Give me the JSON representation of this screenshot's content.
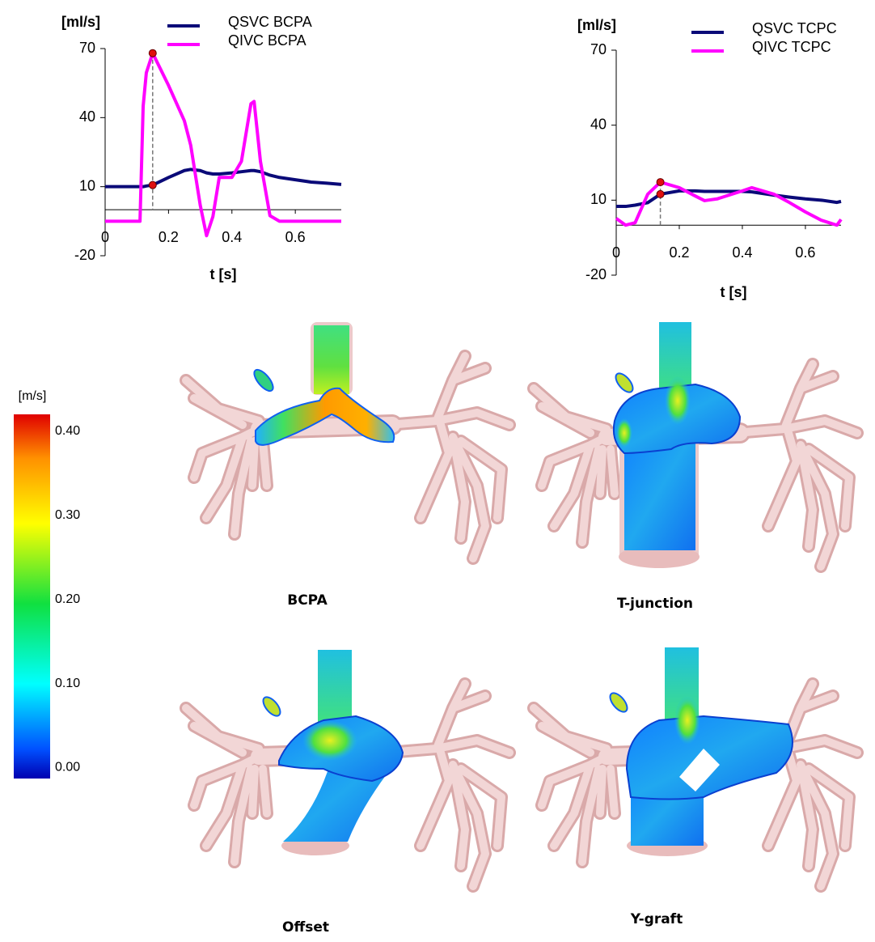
{
  "chart_data": [
    {
      "type": "line",
      "y_label": "[ml/s]",
      "x_label": "t [s]",
      "x": [
        0,
        0.05,
        0.1,
        0.11,
        0.12,
        0.13,
        0.15,
        0.2,
        0.25,
        0.27,
        0.3,
        0.32,
        0.34,
        0.36,
        0.4,
        0.43,
        0.46,
        0.47,
        0.49,
        0.52,
        0.55,
        0.6,
        0.65,
        0.7,
        0.745
      ],
      "series": [
        {
          "name": "QSVC BCPA",
          "color": "#0a0a78",
          "values": [
            10,
            10,
            10,
            10,
            10,
            10.3,
            10.7,
            14,
            17,
            17.5,
            17,
            16,
            15.5,
            15.5,
            16,
            16.5,
            17,
            17,
            16.5,
            15,
            14,
            13,
            12,
            11.5,
            11
          ]
        },
        {
          "name": "QIVC BCPA",
          "color": "#ff00ff",
          "values": [
            -5,
            -5,
            -5,
            -5,
            45,
            59.5,
            68,
            54,
            38.6,
            28,
            2,
            -11.3,
            -3,
            14,
            14,
            21,
            46,
            47,
            21,
            -2.6,
            -5,
            -5,
            -5,
            -5,
            -5
          ]
        }
      ],
      "marker_x": 0.15,
      "marker_color": "#e01010",
      "xlim": [
        0,
        0.745
      ],
      "ylim": [
        -20,
        70
      ],
      "xticks": [
        0,
        0.2,
        0.4,
        0.6
      ],
      "yticks": [
        70,
        40,
        10,
        -20
      ]
    },
    {
      "type": "line",
      "y_label": "[ml/s]",
      "x_label": "t [s]",
      "x": [
        0,
        0.03,
        0.06,
        0.1,
        0.14,
        0.2,
        0.25,
        0.28,
        0.32,
        0.4,
        0.43,
        0.5,
        0.55,
        0.6,
        0.65,
        0.7,
        0.713
      ],
      "series": [
        {
          "name": "QSVC TCPC",
          "color": "#0a0a78",
          "values": [
            7.5,
            7.5,
            8,
            9,
            12.4,
            13.7,
            13.7,
            13.5,
            13.5,
            13.5,
            13.3,
            12,
            11.2,
            10.5,
            10,
            9.1,
            9.5
          ]
        },
        {
          "name": "QIVC TCPC",
          "color": "#ff00ff",
          "values": [
            2.7,
            0,
            1,
            12.4,
            17.2,
            15,
            11.7,
            9.8,
            10.5,
            13.7,
            15,
            12.4,
            9,
            5.3,
            2,
            0,
            2.3
          ]
        }
      ],
      "marker_x": 0.14,
      "marker_color": "#e01010",
      "xlim": [
        0,
        0.713
      ],
      "ylim": [
        -20,
        70
      ],
      "xticks": [
        0,
        0.2,
        0.4,
        0.6
      ],
      "yticks": [
        70,
        40,
        10,
        -20
      ]
    }
  ],
  "colorbar": {
    "label": "[m/s]",
    "lim": [
      -0.013,
      0.42
    ],
    "ticks": [
      {
        "value": 0.4,
        "label": "0.40"
      },
      {
        "value": 0.3,
        "label": "0.30"
      },
      {
        "value": 0.2,
        "label": "0.20"
      },
      {
        "value": 0.1,
        "label": "0.10"
      },
      {
        "value": 0,
        "label": "0.00"
      }
    ]
  },
  "panels": [
    {
      "label": "BCPA"
    },
    {
      "label": "T-junction"
    },
    {
      "label": "Offset"
    },
    {
      "label": "Y-graft"
    }
  ]
}
